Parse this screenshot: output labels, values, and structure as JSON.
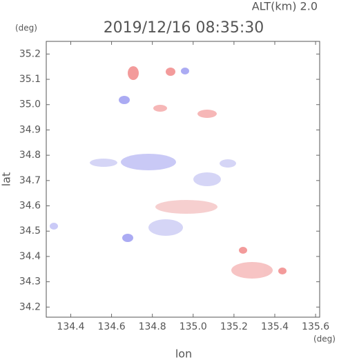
{
  "chart_data": {
    "type": "scatter",
    "title": "2019/12/16 08:35:30",
    "subtitle": "ALT(km) 2.0",
    "x_label": "lon",
    "y_label": "lat",
    "x_unit": "(deg)",
    "y_unit": "(deg)",
    "xlim": [
      134.28,
      135.62
    ],
    "ylim": [
      34.16,
      35.25
    ],
    "xticks": [
      134.4,
      134.6,
      134.8,
      {
        "value": 135,
        "label": "135.0"
      },
      135.2,
      135.4,
      135.6
    ],
    "yticks": [
      34.2,
      34.3,
      34.4,
      34.5,
      34.6,
      34.7,
      34.8,
      34.9,
      {
        "value": 35,
        "label": "35.0"
      },
      35.1,
      35.2
    ]
  }
}
